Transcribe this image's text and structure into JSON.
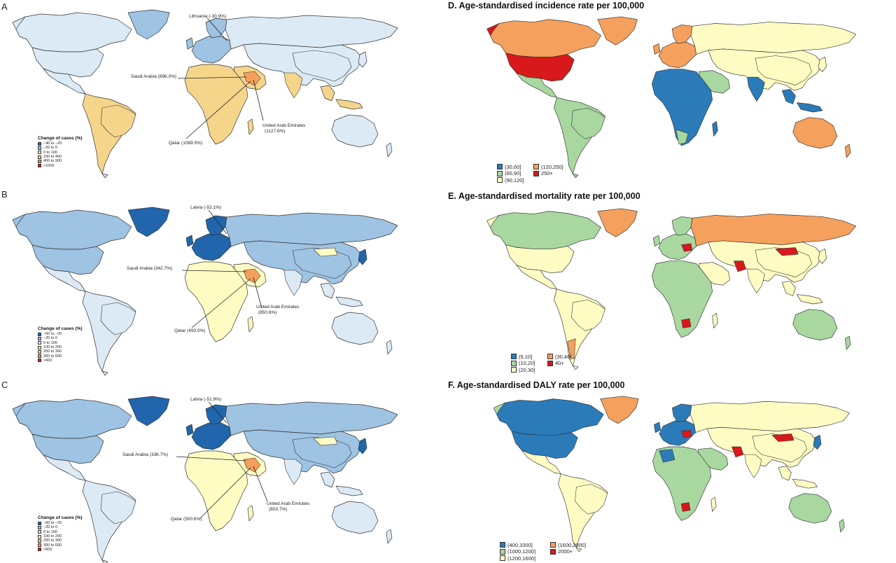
{
  "colors": {
    "dark_blue": "#2166ac",
    "blue": "#5b90c9",
    "light_blue": "#9ec3e3",
    "pale_blue": "#dbeaf5",
    "pale_yellow": "#fffcc3",
    "yellow": "#f5d58a",
    "green": "#a8d8a0",
    "orange": "#f5a05c",
    "red": "#d7191c",
    "dk_blue": "#2b7bb9"
  },
  "panels": {
    "a": {
      "letter": "A",
      "annotations": {
        "lithuania": "Lithuania (-30.9%)",
        "saudi": "Saudi Arabia (896.0%)",
        "uae_name": "United Arab Emirates",
        "uae_value": "(1127.6%)",
        "qatar": "Qatar (1089.5%)"
      },
      "legend": {
        "title": "Change of cases (%)",
        "items": [
          "−40 to −20",
          "−20 to 0",
          "0 to 100",
          "100 to 400",
          "400 to 900",
          ">1000"
        ]
      }
    },
    "b": {
      "letter": "B",
      "annotations": {
        "latvia": "Latvia (-52.1%)",
        "saudi": "Saudi Arabia (342.7%)",
        "uae_name": "United Arab Emirates",
        "uae_value": "(850.6%)",
        "qatar": "Qatar (493.0%)"
      },
      "legend": {
        "title": "Change of cases (%)",
        "items": [
          "−60 to −20",
          "−20 to 0",
          "0 to 100",
          "100 to 200",
          "200 to 300",
          "300 to 600",
          ">600"
        ]
      }
    },
    "c": {
      "letter": "C",
      "annotations": {
        "latvia": "Latvia (-51.9%)",
        "saudi": "Saudi Arabia (336.7%)",
        "uae_name": "United Arab Emirates",
        "uae_value": "(803.7%)",
        "qatar": "Qatar (500.6%)"
      },
      "legend": {
        "title": "Change of cases (%)",
        "items": [
          "−60 to −20",
          "−20 to 0",
          "0 to 100",
          "100 to 200",
          "200 to 300",
          "300 to 600",
          ">600"
        ]
      }
    },
    "d": {
      "title": "D. Age-standardised incidence rate per 100,000",
      "legend": [
        "(30,60]",
        "(120,250]",
        "(60,90]",
        "250+",
        "(90,120]"
      ]
    },
    "e": {
      "title": "E. Age-standardised mortality rate per 100,000",
      "legend": [
        "(5,10]",
        "(30,40]",
        "(10,20]",
        "40+",
        "(20,30]"
      ]
    },
    "f": {
      "title": "F. Age-standardised DALY rate per 100,000",
      "legend": [
        "(400,1000]",
        "(1600,2000]",
        "(1000,1200]",
        "2000+",
        "(1200,1600]"
      ]
    }
  }
}
